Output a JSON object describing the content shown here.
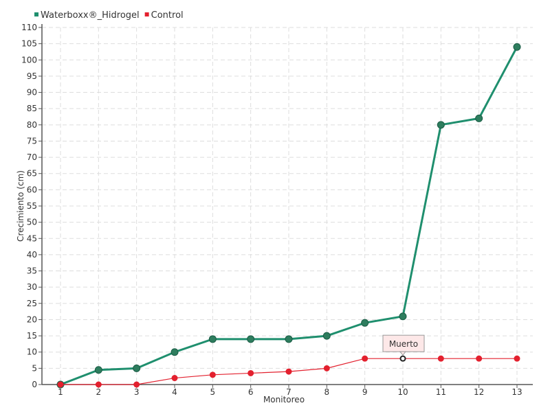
{
  "chart_data": {
    "type": "line",
    "xlabel": "Monitoreo",
    "ylabel": "Crecimiento (cm)",
    "categories": [
      "1",
      "2",
      "3",
      "4",
      "5",
      "6",
      "7",
      "8",
      "9",
      "10",
      "11",
      "12",
      "13"
    ],
    "ylim": [
      0,
      110
    ],
    "ytick_step": 5,
    "grid": true,
    "legend_position": "top-left",
    "series": [
      {
        "name": "Waterboxx®_Hidrogel",
        "color": "#1f8f6e",
        "values": [
          0,
          4.5,
          5,
          10,
          14,
          14,
          14,
          15,
          19,
          21,
          80,
          82,
          104
        ]
      },
      {
        "name": "Control",
        "color": "#e3202e",
        "values": [
          0,
          0,
          0,
          2,
          3,
          3.5,
          4,
          5,
          8,
          8,
          8,
          8,
          8
        ]
      }
    ],
    "annotations": [
      {
        "series": "Control",
        "category": "10",
        "text": "Muerto"
      }
    ]
  }
}
